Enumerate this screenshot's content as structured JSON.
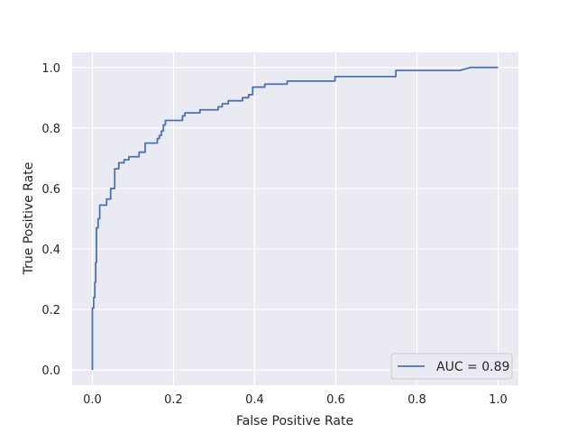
{
  "chart_data": {
    "type": "line",
    "title": "",
    "xlabel": "False Positive Rate",
    "ylabel": "True Positive Rate",
    "xlim": [
      -0.05,
      1.05
    ],
    "ylim": [
      -0.05,
      1.05
    ],
    "xticks": [
      0.0,
      0.2,
      0.4,
      0.6,
      0.8,
      1.0
    ],
    "xtick_labels": [
      "0.0",
      "0.2",
      "0.4",
      "0.6",
      "0.8",
      "1.0"
    ],
    "yticks": [
      0.0,
      0.2,
      0.4,
      0.6,
      0.8,
      1.0
    ],
    "ytick_labels": [
      "0.0",
      "0.2",
      "0.4",
      "0.6",
      "0.8",
      "1.0"
    ],
    "grid": true,
    "background": "#eaeaf2",
    "legend_position": "lower-right",
    "series": [
      {
        "name": "AUC = 0.89",
        "color": "#4c72b0",
        "x": [
          0.0,
          0.0,
          0.003,
          0.003,
          0.006,
          0.006,
          0.008,
          0.008,
          0.01,
          0.01,
          0.014,
          0.014,
          0.018,
          0.018,
          0.022,
          0.022,
          0.035,
          0.035,
          0.045,
          0.045,
          0.055,
          0.055,
          0.065,
          0.065,
          0.078,
          0.078,
          0.09,
          0.09,
          0.115,
          0.115,
          0.13,
          0.13,
          0.16,
          0.16,
          0.165,
          0.165,
          0.17,
          0.17,
          0.175,
          0.175,
          0.18,
          0.18,
          0.222,
          0.222,
          0.228,
          0.228,
          0.265,
          0.265,
          0.31,
          0.31,
          0.32,
          0.32,
          0.335,
          0.335,
          0.37,
          0.37,
          0.385,
          0.385,
          0.395,
          0.395,
          0.425,
          0.425,
          0.48,
          0.48,
          0.598,
          0.598,
          0.748,
          0.748,
          0.905,
          0.932,
          1.0
        ],
        "y": [
          0.0,
          0.205,
          0.205,
          0.24,
          0.24,
          0.29,
          0.29,
          0.355,
          0.355,
          0.47,
          0.47,
          0.5,
          0.5,
          0.545,
          0.545,
          0.545,
          0.545,
          0.565,
          0.565,
          0.6,
          0.6,
          0.665,
          0.665,
          0.685,
          0.685,
          0.695,
          0.695,
          0.705,
          0.705,
          0.72,
          0.72,
          0.75,
          0.75,
          0.765,
          0.765,
          0.775,
          0.775,
          0.79,
          0.79,
          0.81,
          0.81,
          0.825,
          0.825,
          0.84,
          0.84,
          0.85,
          0.85,
          0.86,
          0.86,
          0.87,
          0.87,
          0.88,
          0.88,
          0.89,
          0.89,
          0.9,
          0.9,
          0.91,
          0.91,
          0.935,
          0.935,
          0.945,
          0.945,
          0.955,
          0.955,
          0.97,
          0.97,
          0.99,
          0.99,
          1.0,
          1.0
        ]
      }
    ]
  }
}
